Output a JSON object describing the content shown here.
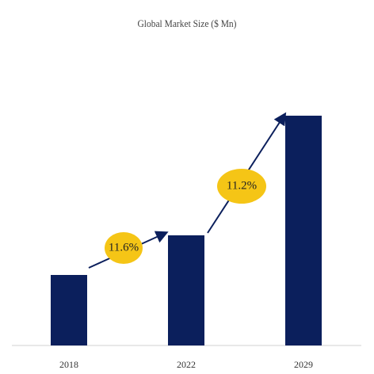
{
  "chart_data": {
    "type": "bar",
    "title": "Global Market Size ($ Mn)",
    "categories": [
      "2018",
      "2022",
      "2029"
    ],
    "values": [
      89,
      139,
      290
    ],
    "color": "#0b1f5c",
    "annotations": [
      "11.6%",
      "11.2%"
    ]
  }
}
